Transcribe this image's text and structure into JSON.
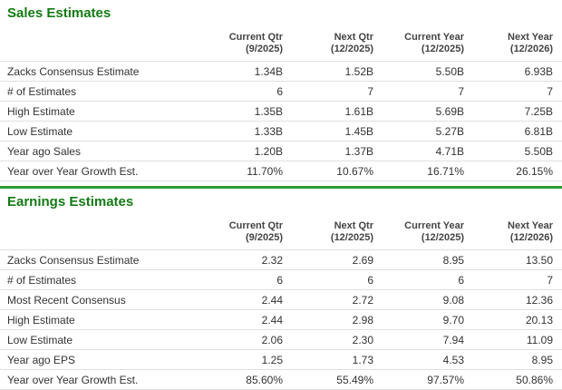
{
  "colors": {
    "title_green": "#147a14",
    "divider_green": "#2f9e2f",
    "border_gray": "#e0e0e0",
    "header_text": "#444444",
    "body_text": "#333333",
    "background": "#ffffff"
  },
  "sections": [
    {
      "title": "Sales Estimates",
      "columns": [
        {
          "label": "Current Qtr",
          "sub": "(9/2025)"
        },
        {
          "label": "Next Qtr",
          "sub": "(12/2025)"
        },
        {
          "label": "Current Year",
          "sub": "(12/2025)"
        },
        {
          "label": "Next Year",
          "sub": "(12/2026)"
        }
      ],
      "rows": [
        {
          "label": "Zacks Consensus Estimate",
          "values": [
            "1.34B",
            "1.52B",
            "5.50B",
            "6.93B"
          ]
        },
        {
          "label": "# of Estimates",
          "values": [
            "6",
            "7",
            "7",
            "7"
          ]
        },
        {
          "label": "High Estimate",
          "values": [
            "1.35B",
            "1.61B",
            "5.69B",
            "7.25B"
          ]
        },
        {
          "label": "Low Estimate",
          "values": [
            "1.33B",
            "1.45B",
            "5.27B",
            "6.81B"
          ]
        },
        {
          "label": "Year ago Sales",
          "values": [
            "1.20B",
            "1.37B",
            "4.71B",
            "5.50B"
          ]
        },
        {
          "label": "Year over Year Growth Est.",
          "values": [
            "11.70%",
            "10.67%",
            "16.71%",
            "26.15%"
          ]
        }
      ]
    },
    {
      "title": "Earnings Estimates",
      "columns": [
        {
          "label": "Current Qtr",
          "sub": "(9/2025)"
        },
        {
          "label": "Next Qtr",
          "sub": "(12/2025)"
        },
        {
          "label": "Current Year",
          "sub": "(12/2025)"
        },
        {
          "label": "Next Year",
          "sub": "(12/2026)"
        }
      ],
      "rows": [
        {
          "label": "Zacks Consensus Estimate",
          "values": [
            "2.32",
            "2.69",
            "8.95",
            "13.50"
          ]
        },
        {
          "label": "# of Estimates",
          "values": [
            "6",
            "6",
            "6",
            "7"
          ]
        },
        {
          "label": "Most Recent Consensus",
          "values": [
            "2.44",
            "2.72",
            "9.08",
            "12.36"
          ]
        },
        {
          "label": "High Estimate",
          "values": [
            "2.44",
            "2.98",
            "9.70",
            "20.13"
          ]
        },
        {
          "label": "Low Estimate",
          "values": [
            "2.06",
            "2.30",
            "7.94",
            "11.09"
          ]
        },
        {
          "label": "Year ago EPS",
          "values": [
            "1.25",
            "1.73",
            "4.53",
            "8.95"
          ]
        },
        {
          "label": "Year over Year Growth Est.",
          "values": [
            "85.60%",
            "55.49%",
            "97.57%",
            "50.86%"
          ]
        }
      ]
    }
  ]
}
